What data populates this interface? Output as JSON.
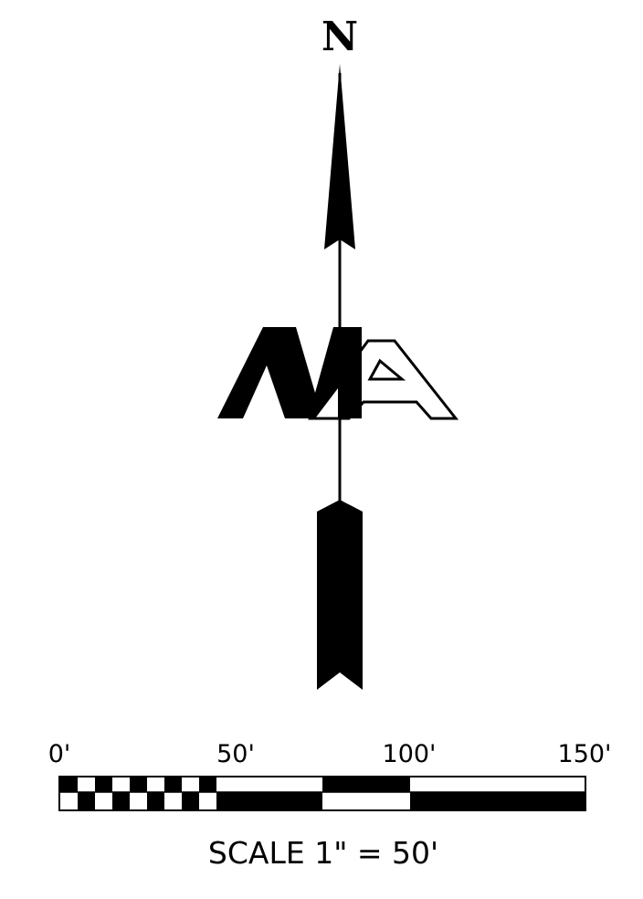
{
  "north_arrow": {
    "direction_label": "N",
    "logo_text": "MA"
  },
  "scale_bar": {
    "tick_labels": [
      "0'",
      "50'",
      "100'",
      "150'"
    ],
    "scale_text": "SCALE 1\" = 50'"
  }
}
